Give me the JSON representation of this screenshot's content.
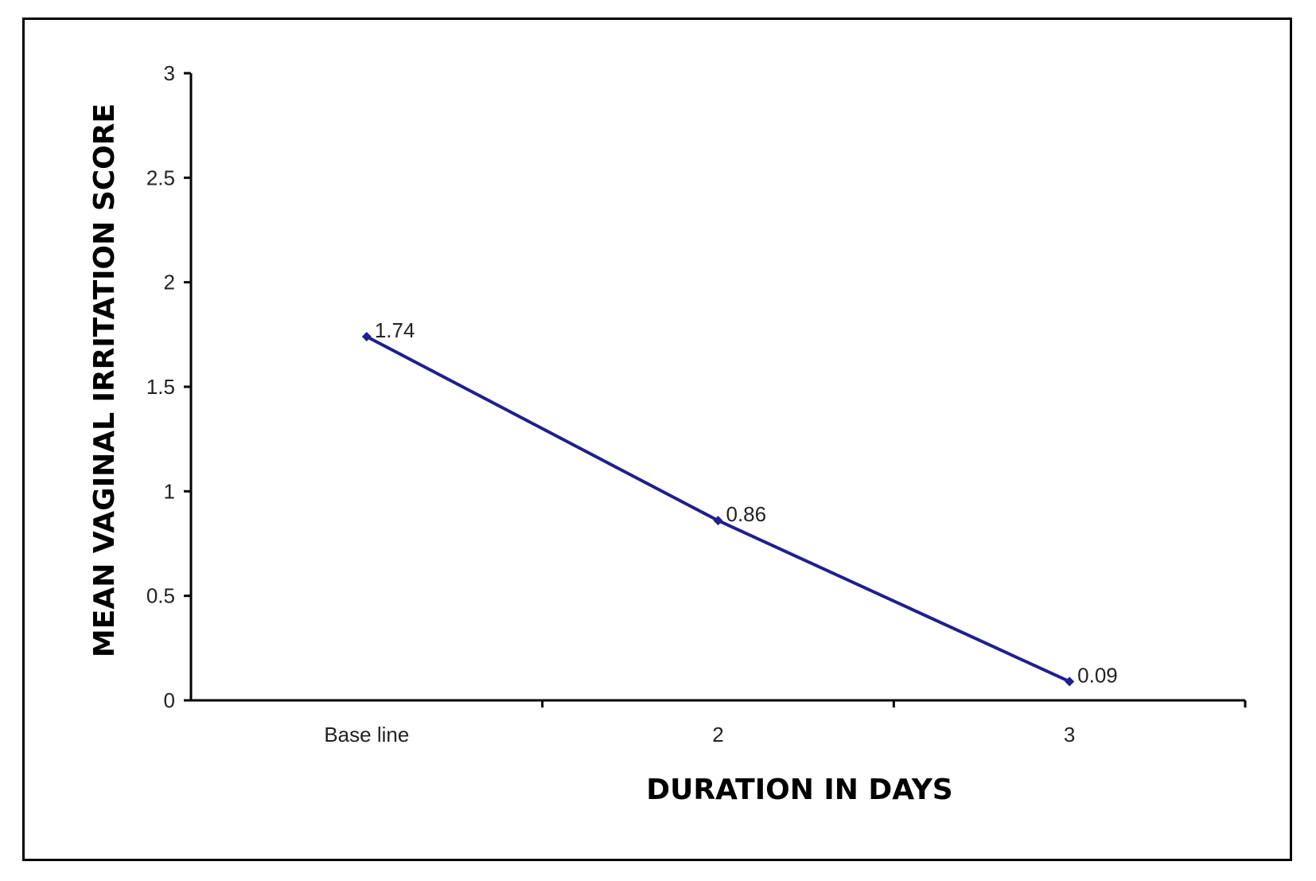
{
  "chart_data": {
    "type": "line",
    "title": "",
    "xlabel": "DURATION IN DAYS",
    "ylabel": "MEAN VAGINAL IRRITATION SCORE",
    "categories": [
      "Base line",
      "2",
      "3"
    ],
    "series": [
      {
        "values": [
          1.74,
          0.86,
          0.09
        ],
        "data_labels": [
          "1.74",
          "0.86",
          "0.09"
        ]
      }
    ],
    "ylim": [
      0,
      3
    ],
    "yticks": [
      0,
      0.5,
      1,
      1.5,
      2,
      2.5,
      3
    ],
    "ytick_labels": [
      "0",
      "0.5",
      "1",
      "1.5",
      "2",
      "2.5",
      "3"
    ],
    "grid": false,
    "legend": "none",
    "colors": {
      "line": "#1f1f8f",
      "axis": "#000000",
      "frame": "#000000"
    }
  }
}
